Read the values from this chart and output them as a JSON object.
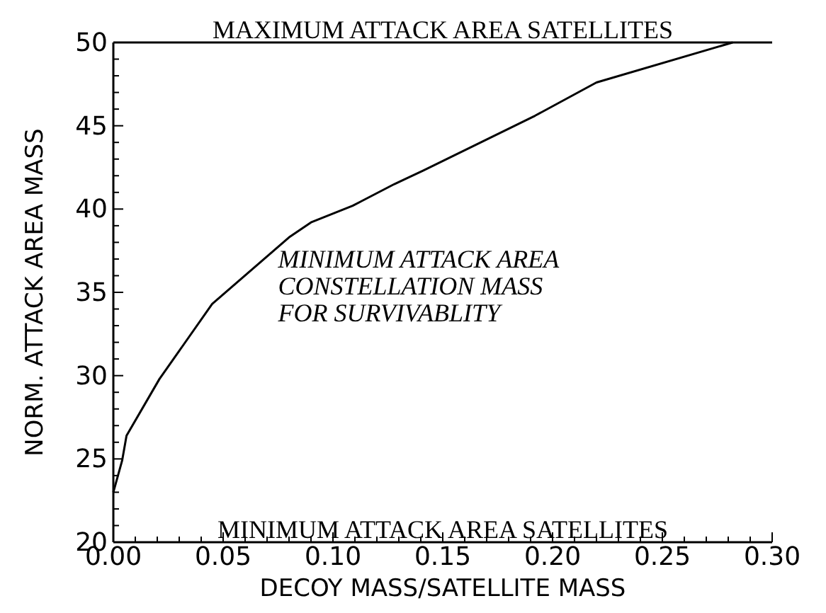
{
  "chart_data": {
    "type": "line",
    "xlabel": "DECOY MASS/SATELLITE MASS",
    "ylabel": "NORM. ATTACK AREA MASS",
    "x": [
      0,
      0.004,
      0.006,
      0.021,
      0.045,
      0.08,
      0.09,
      0.109,
      0.128,
      0.141,
      0.192,
      0.22,
      0.282
    ],
    "series": [
      {
        "color": "#000000",
        "values": [
          23,
          24.9,
          26.4,
          29.8,
          34.3,
          38.3,
          39.2,
          40.2,
          41.5,
          42.3,
          45.6,
          47.6,
          50
        ]
      }
    ],
    "xlim": [
      0,
      0.3
    ],
    "ylim": [
      20,
      50
    ],
    "xticks": [
      {
        "value": 0,
        "label": "0.00"
      },
      {
        "value": 0.01,
        "label": null
      },
      {
        "value": 0.02,
        "label": null
      },
      {
        "value": 0.03,
        "label": null
      },
      {
        "value": 0.04,
        "label": null
      },
      {
        "value": 0.05,
        "label": "0.05"
      },
      {
        "value": 0.06,
        "label": null
      },
      {
        "value": 0.07,
        "label": null
      },
      {
        "value": 0.08,
        "label": null
      },
      {
        "value": 0.09,
        "label": null
      },
      {
        "value": 0.1,
        "label": "0.10"
      },
      {
        "value": 0.11,
        "label": null
      },
      {
        "value": 0.12,
        "label": null
      },
      {
        "value": 0.13,
        "label": null
      },
      {
        "value": 0.14,
        "label": null
      },
      {
        "value": 0.15,
        "label": "0.15"
      },
      {
        "value": 0.16,
        "label": null
      },
      {
        "value": 0.17,
        "label": null
      },
      {
        "value": 0.18,
        "label": null
      },
      {
        "value": 0.19,
        "label": null
      },
      {
        "value": 0.2,
        "label": "0.20"
      },
      {
        "value": 0.21,
        "label": null
      },
      {
        "value": 0.22,
        "label": null
      },
      {
        "value": 0.23,
        "label": null
      },
      {
        "value": 0.24,
        "label": null
      },
      {
        "value": 0.25,
        "label": "0.25"
      },
      {
        "value": 0.26,
        "label": null
      },
      {
        "value": 0.27,
        "label": null
      },
      {
        "value": 0.28,
        "label": null
      },
      {
        "value": 0.29,
        "label": null
      },
      {
        "value": 0.3,
        "label": "0.30"
      }
    ],
    "yticks": [
      20,
      {
        "value": 21,
        "label": null
      },
      {
        "value": 22,
        "label": null
      },
      {
        "value": 23,
        "label": null
      },
      {
        "value": 24,
        "label": null
      },
      25,
      {
        "value": 26,
        "label": null
      },
      {
        "value": 27,
        "label": null
      },
      {
        "value": 28,
        "label": null
      },
      {
        "value": 29,
        "label": null
      },
      30,
      {
        "value": 31,
        "label": null
      },
      {
        "value": 32,
        "label": null
      },
      {
        "value": 33,
        "label": null
      },
      {
        "value": 34,
        "label": null
      },
      35,
      {
        "value": 36,
        "label": null
      },
      {
        "value": 37,
        "label": null
      },
      {
        "value": 38,
        "label": null
      },
      {
        "value": 39,
        "label": null
      },
      40,
      {
        "value": 41,
        "label": null
      },
      {
        "value": 42,
        "label": null
      },
      {
        "value": 43,
        "label": null
      },
      {
        "value": 44,
        "label": null
      },
      45,
      {
        "value": 46,
        "label": null
      },
      {
        "value": 47,
        "label": null
      },
      {
        "value": 48,
        "label": null
      },
      {
        "value": 49,
        "label": null
      },
      50
    ],
    "ref_lines": [
      {
        "axis": "y",
        "value": 50,
        "label": "MAXIMUM ATTACK AREA SATELLITES"
      }
    ],
    "annotations": [
      "MINIMUM ATTACK AREA\nCONSTELLATION MASS\nFOR SURVIVABLITY",
      "MINIMUM ATTACK AREA SATELLITES"
    ],
    "grid": false,
    "marker": "none",
    "line_style": "solid"
  }
}
